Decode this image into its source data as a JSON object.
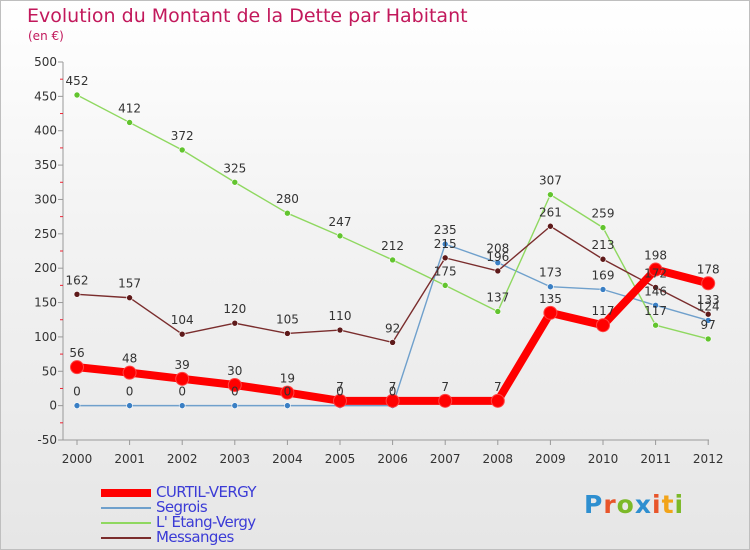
{
  "title": "Evolution du Montant de la Dette par Habitant",
  "subtitle": "(en €)",
  "logo": {
    "letters": [
      "P",
      "r",
      "o",
      "x",
      "i",
      "t",
      "i"
    ],
    "colors": [
      "#2e8fd0",
      "#e8552a",
      "#7cb928",
      "#2e8fd0",
      "#e8552a",
      "#f2a41a",
      "#7cb928"
    ]
  },
  "chart_data": {
    "type": "line",
    "title": "Evolution du Montant de la Dette par Habitant",
    "subtitle": "(en €)",
    "xlabel": "",
    "ylabel": "",
    "ylim": [
      -50,
      500
    ],
    "yticks": [
      -50,
      0,
      50,
      100,
      150,
      200,
      250,
      300,
      350,
      400,
      450,
      500
    ],
    "x": [
      "2000",
      "2001",
      "2002",
      "2003",
      "2004",
      "2005",
      "2006",
      "2007",
      "2008",
      "2009",
      "2010",
      "2011",
      "2012"
    ],
    "grid": false,
    "legend_position": "bottom-left",
    "series": [
      {
        "name": "CURTIL-VERGY",
        "color": "#ff0000",
        "bold": true,
        "values": [
          56,
          48,
          39,
          30,
          19,
          7,
          7,
          7,
          7,
          135,
          117,
          198,
          178
        ]
      },
      {
        "name": "Segrois",
        "color": "#6fa0cc",
        "marker": "#3a7fc4",
        "values": [
          0,
          0,
          0,
          0,
          0,
          0,
          0,
          235,
          208,
          173,
          169,
          146,
          124
        ]
      },
      {
        "name": "L' Etang-Vergy",
        "color": "#8fd860",
        "marker": "#62c42e",
        "values": [
          452,
          412,
          372,
          325,
          280,
          247,
          212,
          175,
          137,
          307,
          259,
          117,
          97
        ]
      },
      {
        "name": "Messanges",
        "color": "#7a2d2d",
        "marker": "#5e1a1a",
        "values": [
          162,
          157,
          104,
          120,
          105,
          110,
          92,
          215,
          196,
          261,
          213,
          172,
          133
        ]
      }
    ]
  }
}
